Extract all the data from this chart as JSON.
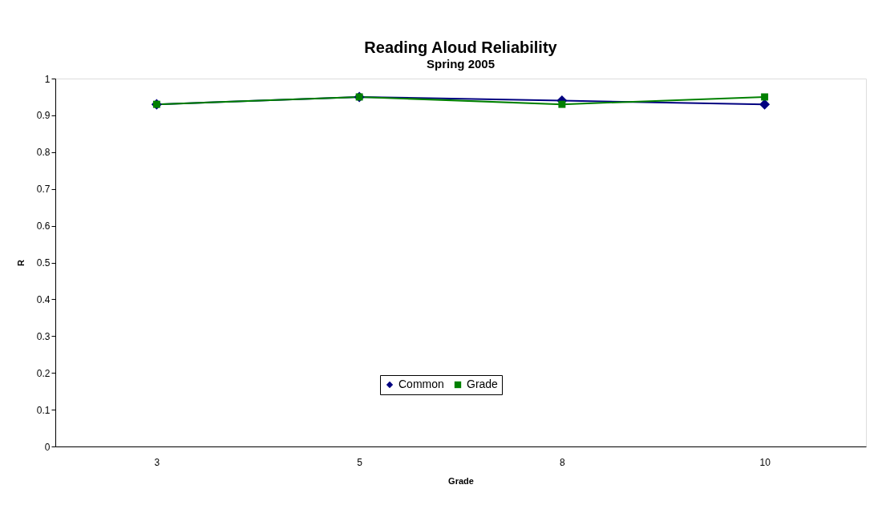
{
  "chart_data": {
    "type": "line",
    "title": "Reading Aloud Reliability",
    "subtitle": "Spring 2005",
    "xlabel": "Grade",
    "ylabel": "R",
    "categories": [
      "3",
      "5",
      "8",
      "10"
    ],
    "series": [
      {
        "name": "Common",
        "color": "#000080",
        "marker": "diamond",
        "values": [
          0.93,
          0.95,
          0.94,
          0.93
        ]
      },
      {
        "name": "Grade",
        "color": "#008000",
        "marker": "square",
        "values": [
          0.93,
          0.95,
          0.93,
          0.95
        ]
      }
    ],
    "ylim": [
      0,
      1
    ],
    "yticks": [
      0,
      0.1,
      0.2,
      0.3,
      0.4,
      0.5,
      0.6,
      0.7,
      0.8,
      0.9,
      1
    ],
    "grid": false,
    "legend": "bottom",
    "line_style": "solid"
  }
}
